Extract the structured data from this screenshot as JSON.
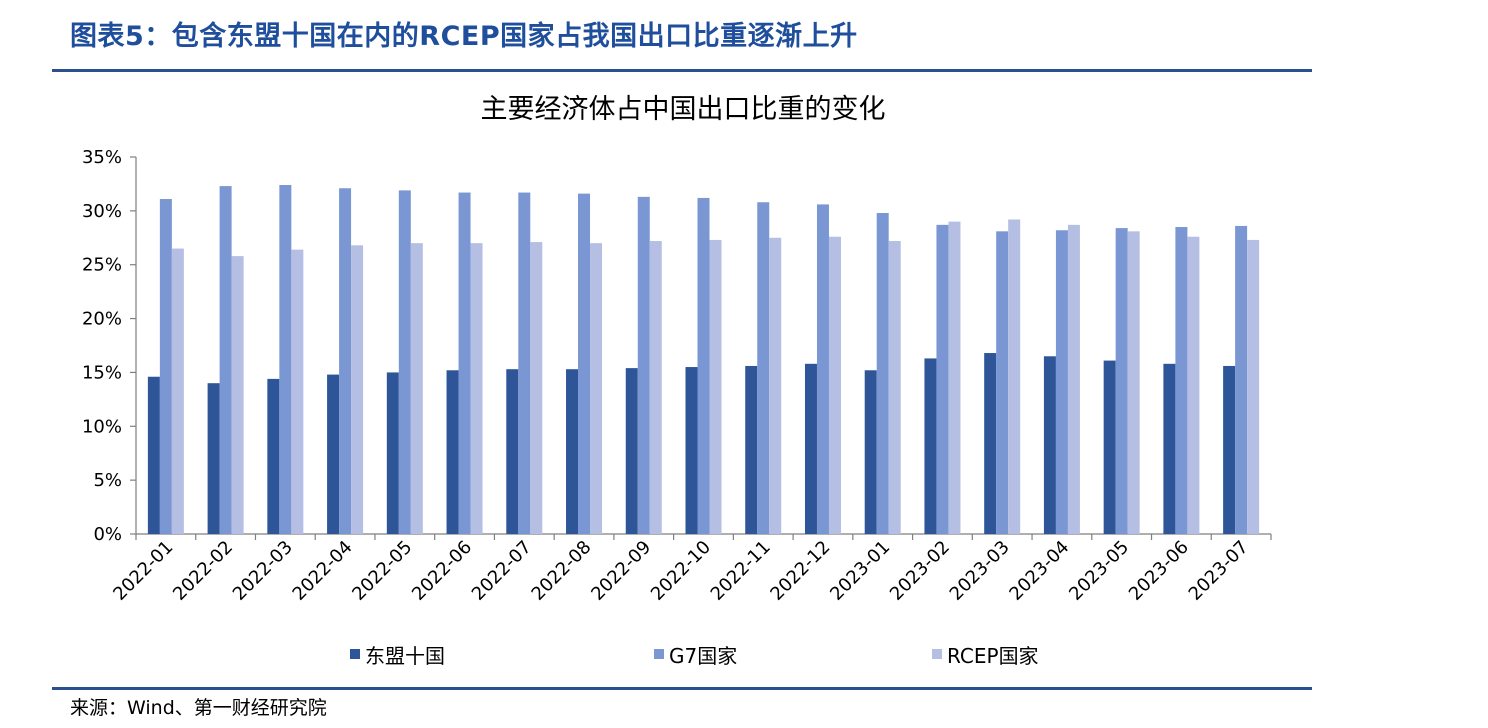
{
  "header": {
    "title": "图表5：包含东盟十国在内的RCEP国家占我国出口比重逐渐上升"
  },
  "source": "来源：Wind、第一财经研究院",
  "colors": {
    "rule": "#2b4f8f",
    "header_text": "#1f4e9c"
  },
  "chart_data": {
    "type": "bar",
    "title": "主要经济体占中国出口比重的变化",
    "xlabel": "",
    "ylabel": "",
    "ylim": [
      0,
      35
    ],
    "yticks": [
      "0%",
      "5%",
      "10%",
      "15%",
      "20%",
      "25%",
      "30%",
      "35%"
    ],
    "ytick_values": [
      0,
      5,
      10,
      15,
      20,
      25,
      30,
      35
    ],
    "grid": false,
    "legend_position": "bottom",
    "categories": [
      "2022-01",
      "2022-02",
      "2022-03",
      "2022-04",
      "2022-05",
      "2022-06",
      "2022-07",
      "2022-08",
      "2022-09",
      "2022-10",
      "2022-11",
      "2022-12",
      "2023-01",
      "2023-02",
      "2023-03",
      "2023-04",
      "2023-05",
      "2023-06",
      "2023-07"
    ],
    "series": [
      {
        "name": "东盟十国",
        "color": "#2e5597",
        "values": [
          14.6,
          14.0,
          14.4,
          14.8,
          15.0,
          15.2,
          15.3,
          15.3,
          15.4,
          15.5,
          15.6,
          15.8,
          15.2,
          16.3,
          16.8,
          16.5,
          16.1,
          15.8,
          15.6
        ]
      },
      {
        "name": "G7国家",
        "color": "#7a97d3",
        "values": [
          31.1,
          32.3,
          32.4,
          32.1,
          31.9,
          31.7,
          31.7,
          31.6,
          31.3,
          31.2,
          30.8,
          30.6,
          29.8,
          28.7,
          28.1,
          28.2,
          28.4,
          28.5,
          28.6
        ]
      },
      {
        "name": "RCEP国家",
        "color": "#b4bfe3",
        "values": [
          26.5,
          25.8,
          26.4,
          26.8,
          27.0,
          27.0,
          27.1,
          27.0,
          27.2,
          27.3,
          27.5,
          27.6,
          27.2,
          29.0,
          29.2,
          28.7,
          28.1,
          27.6,
          27.3
        ]
      }
    ]
  }
}
